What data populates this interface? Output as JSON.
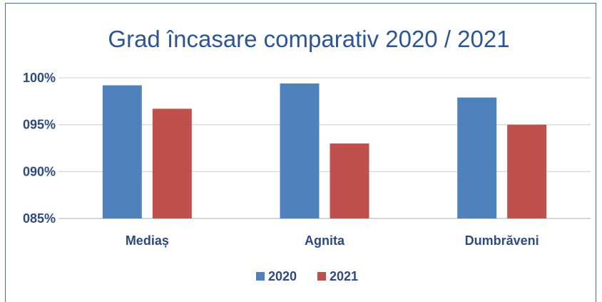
{
  "chart_data": {
    "type": "bar",
    "title": "Grad încasare comparativ 2020 / 2021",
    "categories": [
      "Mediaș",
      "Agnita",
      "Dumbrăveni"
    ],
    "series": [
      {
        "name": "2020",
        "values": [
          0.992,
          0.994,
          0.979
        ],
        "color": "#4f81bd"
      },
      {
        "name": "2021",
        "values": [
          0.967,
          0.93,
          0.95
        ],
        "color": "#c0504d"
      }
    ],
    "ylim": [
      0.85,
      1.0
    ],
    "yticks": [
      0.85,
      0.9,
      0.95,
      1.0
    ],
    "ytick_labels": [
      "085%",
      "090%",
      "095%",
      "100%"
    ],
    "grid": true,
    "legend_position": "bottom",
    "xlabel": "",
    "ylabel": ""
  }
}
